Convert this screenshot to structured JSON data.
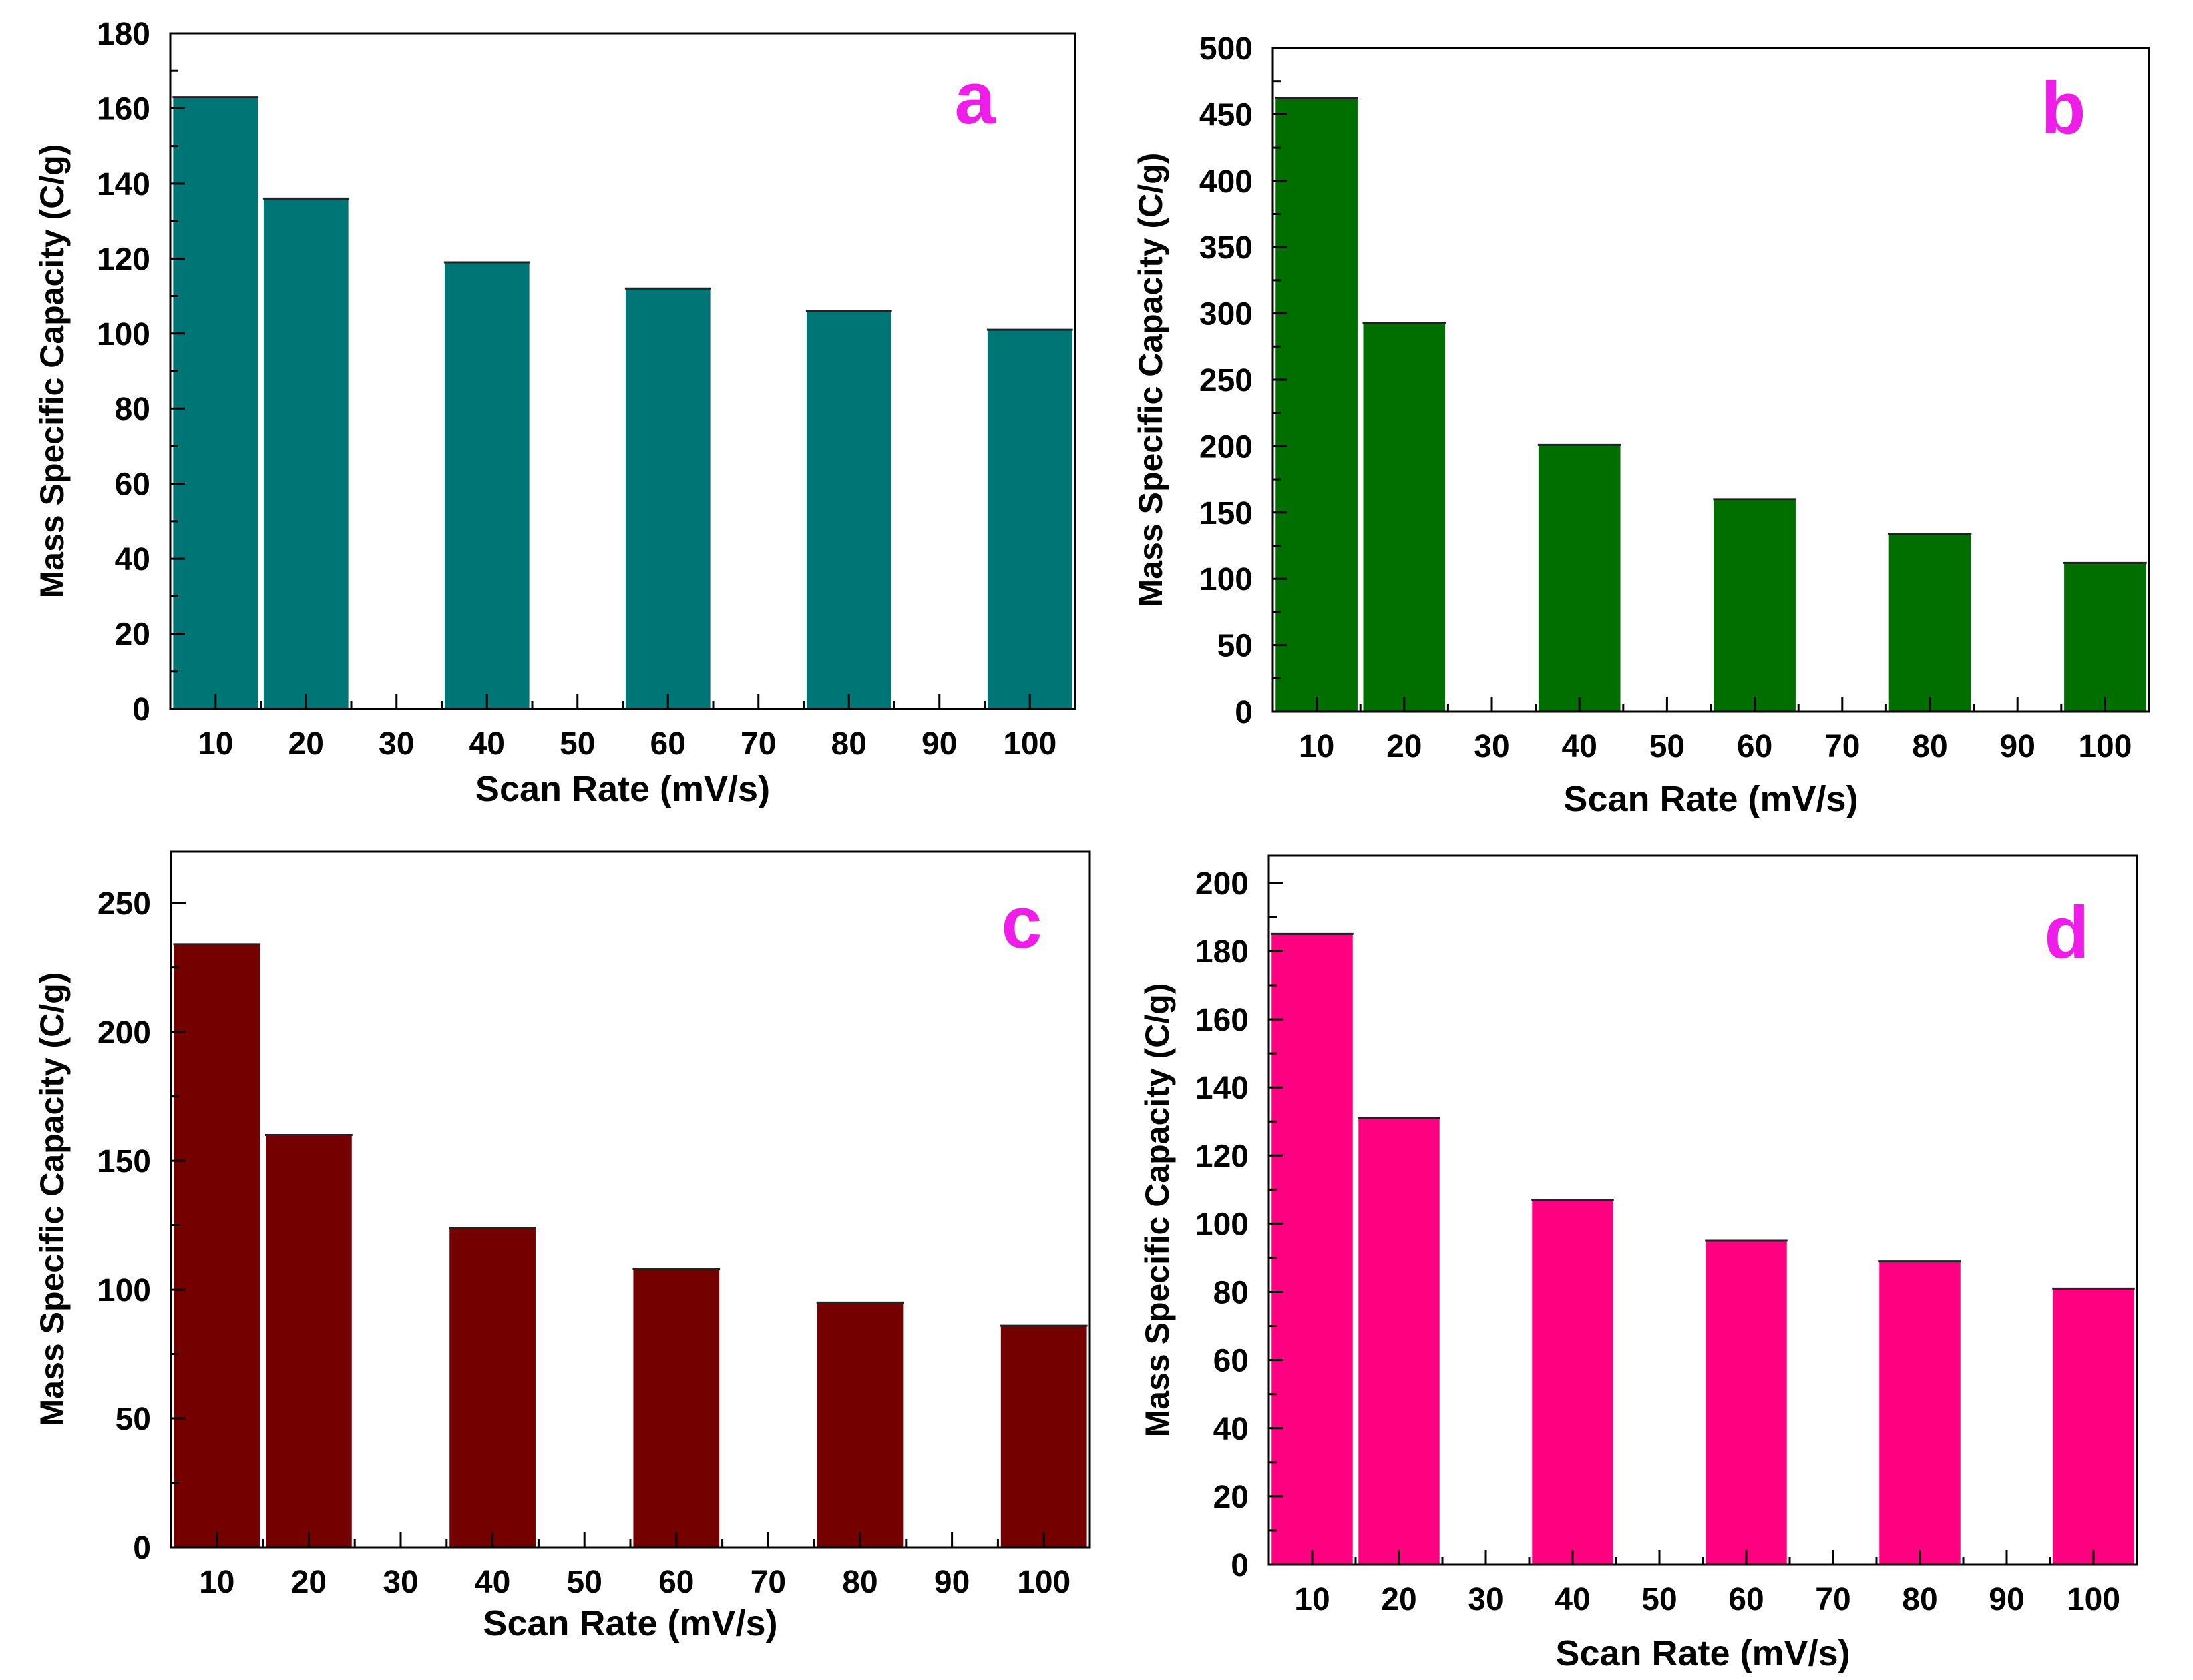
{
  "chart_data": [
    {
      "type": "bar",
      "panel_label": "a",
      "xlabel": "Scan Rate (mV/s)",
      "ylabel": "Mass Specific Capacity (C/g)",
      "ylim": [
        0,
        180
      ],
      "yticks": [
        0,
        20,
        40,
        60,
        80,
        100,
        120,
        140,
        160,
        180
      ],
      "xticks": [
        10,
        20,
        30,
        40,
        50,
        60,
        70,
        80,
        90,
        100
      ],
      "xlim": [
        5,
        105
      ],
      "bar_width": 9.5,
      "color": "#007575",
      "label_color": "#ee1de8",
      "x": [
        10,
        20,
        40,
        60,
        80,
        100
      ],
      "values": [
        163,
        136,
        119,
        112,
        106,
        101
      ]
    },
    {
      "type": "bar",
      "panel_label": "b",
      "xlabel": "Scan Rate (mV/s)",
      "ylabel": "Mass Specific Capacity (C/g)",
      "ylim": [
        0,
        500
      ],
      "yticks": [
        0,
        50,
        100,
        150,
        200,
        250,
        300,
        350,
        400,
        450,
        500
      ],
      "xticks": [
        10,
        20,
        30,
        40,
        50,
        60,
        70,
        80,
        90,
        100
      ],
      "xlim": [
        5,
        105
      ],
      "bar_width": 9.5,
      "color": "#006f00",
      "label_color": "#ee1de8",
      "x": [
        10,
        20,
        40,
        60,
        80,
        100
      ],
      "values": [
        462,
        293,
        201,
        160,
        134,
        112
      ]
    },
    {
      "type": "bar",
      "panel_label": "c",
      "xlabel": "Scan Rate (mV/s)",
      "ylabel": "Mass Specific Capacity (C/g)",
      "ylim": [
        0,
        270
      ],
      "yticks": [
        0,
        50,
        100,
        150,
        200,
        250
      ],
      "xticks": [
        10,
        20,
        30,
        40,
        50,
        60,
        70,
        80,
        90,
        100
      ],
      "xlim": [
        5,
        105
      ],
      "bar_width": 9.5,
      "color": "#750000",
      "label_color": "#ee1de8",
      "x": [
        10,
        20,
        40,
        60,
        80,
        100
      ],
      "values": [
        234,
        160,
        124,
        108,
        95,
        86
      ]
    },
    {
      "type": "bar",
      "panel_label": "d",
      "xlabel": "Scan Rate (mV/s)",
      "ylabel": "Mass Specific Capacity (C/g)",
      "ylim": [
        0,
        208
      ],
      "yticks": [
        0,
        20,
        40,
        60,
        80,
        100,
        120,
        140,
        160,
        180,
        200
      ],
      "xticks": [
        10,
        20,
        30,
        40,
        50,
        60,
        70,
        80,
        90,
        100
      ],
      "xlim": [
        5,
        105
      ],
      "bar_width": 9.5,
      "color": "#ff0080",
      "label_color": "#ee1de8",
      "x": [
        10,
        20,
        40,
        60,
        80,
        100
      ],
      "values": [
        185,
        131,
        107,
        95,
        89,
        81
      ]
    }
  ]
}
